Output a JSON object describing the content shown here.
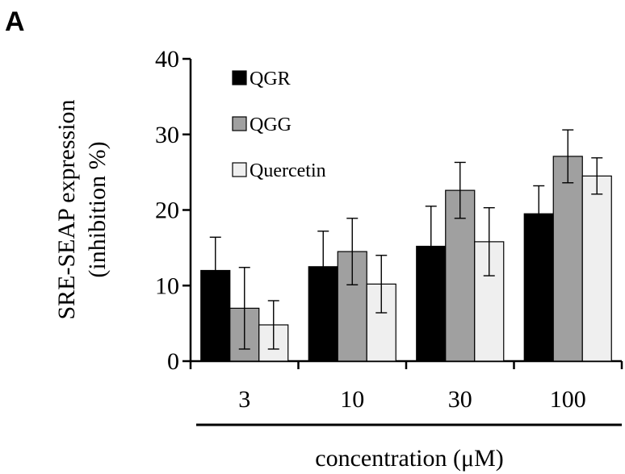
{
  "panel_label": "A",
  "chart_data": {
    "type": "bar",
    "title": "",
    "xlabel": "concentration (μM)",
    "ylabel": [
      "SRE-SEAP expression",
      "(inhibition %)"
    ],
    "categories": [
      "3",
      "10",
      "30",
      "100"
    ],
    "ylim": [
      0,
      40
    ],
    "yticks": [
      0,
      10,
      20,
      30,
      40
    ],
    "grid": false,
    "legend_position": "top-left",
    "series": [
      {
        "name": "QGR",
        "color": "#000000",
        "values": [
          12,
          12.5,
          15.2,
          19.5
        ],
        "errors": [
          4.4,
          4.7,
          5.3,
          3.7
        ]
      },
      {
        "name": "QGG",
        "color": "#a0a0a0",
        "values": [
          7,
          14.5,
          22.6,
          27.1
        ],
        "errors": [
          5.4,
          4.4,
          3.7,
          3.5
        ]
      },
      {
        "name": "Quercetin",
        "color": "#efefef",
        "values": [
          4.8,
          10.2,
          15.8,
          24.5
        ],
        "errors": [
          3.2,
          3.8,
          4.5,
          2.4
        ]
      }
    ]
  }
}
